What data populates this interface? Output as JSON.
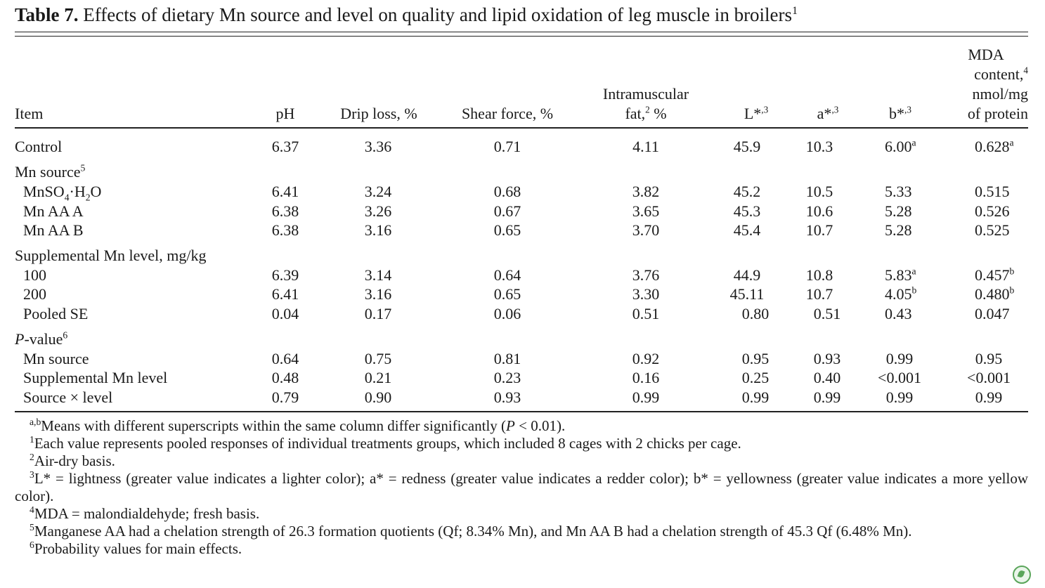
{
  "caption": {
    "label": "Table 7.",
    "text": "Effects of dietary Mn source and level on quality and lipid oxidation of leg muscle in broilers",
    "sup": "1"
  },
  "headers": {
    "item": "Item",
    "ph": "pH",
    "drip": "Drip loss, %",
    "shear": "Shear force, %",
    "imf_line1": "Intramuscular",
    "imf_line2a": "fat,",
    "imf_sup": "2",
    "imf_line2b": " %",
    "l": "L*",
    "l_sup": ",3",
    "a": "a*",
    "a_sup": ",3",
    "b": "b*",
    "b_sup": ",3",
    "mda_line1": "MDA",
    "mda_line2": "content,",
    "mda_sup": "4",
    "mda_line3": "nmol/mg",
    "mda_line4": "of protein"
  },
  "rows": {
    "control": {
      "label": "Control",
      "v": [
        "6.37",
        "3.36",
        "0.71",
        "4.11",
        "45.9",
        "10.3",
        "6.00",
        "0.628"
      ],
      "bsup": "a",
      "msup": "a"
    },
    "section_source": {
      "label": "Mn source",
      "sup": "5"
    },
    "mnso4": {
      "label_a": "MnSO",
      "sub1": "4",
      "label_b": "·H",
      "sub2": "2",
      "label_c": "O",
      "v": [
        "6.41",
        "3.24",
        "0.68",
        "3.82",
        "45.2",
        "10.5",
        "5.33",
        "0.515"
      ]
    },
    "mnaaa": {
      "label": "Mn AA A",
      "v": [
        "6.38",
        "3.26",
        "0.67",
        "3.65",
        "45.3",
        "10.6",
        "5.28",
        "0.526"
      ]
    },
    "mnaab": {
      "label": "Mn AA B",
      "v": [
        "6.38",
        "3.16",
        "0.65",
        "3.70",
        "45.4",
        "10.7",
        "5.28",
        "0.525"
      ]
    },
    "section_level": {
      "label": "Supplemental Mn level, mg/kg"
    },
    "l100": {
      "label": "100",
      "v": [
        "6.39",
        "3.14",
        "0.64",
        "3.76",
        "44.9",
        "10.8",
        "5.83",
        "0.457"
      ],
      "bsup": "a",
      "msup": "b"
    },
    "l200": {
      "label": "200",
      "v": [
        "6.41",
        "3.16",
        "0.65",
        "3.30",
        "45.11",
        "10.7",
        "4.05",
        "0.480"
      ],
      "bsup": "b",
      "msup": "b"
    },
    "pooled": {
      "label": "Pooled SE",
      "v": [
        "0.04",
        "0.17",
        "0.06",
        "0.51",
        "0.80",
        "0.51",
        "0.43",
        "0.047"
      ]
    },
    "section_p": {
      "label_i": "P",
      "label": "-value",
      "sup": "6"
    },
    "p_source": {
      "label": "Mn source",
      "v": [
        "0.64",
        "0.75",
        "0.81",
        "0.92",
        "0.95",
        "0.93",
        "0.99",
        "0.95"
      ]
    },
    "p_level": {
      "label": "Supplemental Mn level",
      "v": [
        "0.48",
        "0.21",
        "0.23",
        "0.16",
        "0.25",
        "0.40",
        "<0.001",
        "<0.001"
      ]
    },
    "p_inter": {
      "label": "Source × level",
      "v": [
        "0.79",
        "0.90",
        "0.93",
        "0.99",
        "0.99",
        "0.99",
        "0.99",
        "0.99"
      ]
    }
  },
  "footnotes": {
    "ab_mark": "a,b",
    "ab_text": "Means with different superscripts within the same column differ significantly (",
    "ab_p": "P",
    "ab_tail": " < 0.01).",
    "n1_mark": "1",
    "n1": "Each value represents pooled responses of individual treatments groups, which included 8 cages with 2 chicks per cage.",
    "n2_mark": "2",
    "n2": "Air-dry basis.",
    "n3_mark": "3",
    "n3": "L* = lightness (greater value indicates a lighter color); a* = redness (greater value indicates a redder color); b* = yellowness (greater value indicates a more yellow color).",
    "n4_mark": "4",
    "n4": "MDA = malondialdehyde; fresh basis.",
    "n5_mark": "5",
    "n5": "Manganese AA had a chelation strength of 26.3 formation quotients (Qf; 8.34% Mn), and Mn AA B had a chelation strength of 45.3 Qf (6.48% Mn).",
    "n6_mark": "6",
    "n6": "Probability values for main effects."
  }
}
